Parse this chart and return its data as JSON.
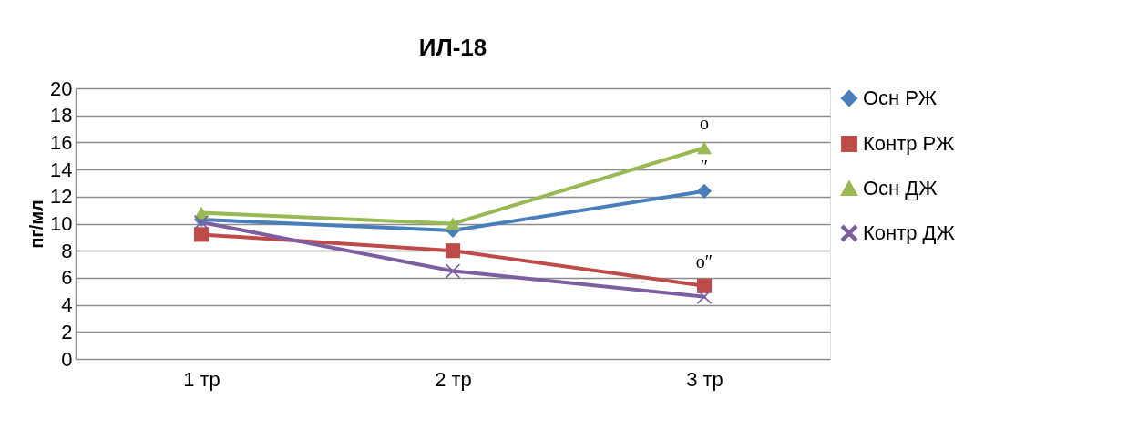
{
  "chart_data": {
    "type": "line",
    "title": "ИЛ-18",
    "ylabel": "пг/мл",
    "categories": [
      "1 тр",
      "2 тр",
      "3 тр"
    ],
    "series": [
      {
        "name": "Осн РЖ",
        "color": "#4a7ebb",
        "marker": "diamond",
        "values": [
          10.3,
          9.5,
          12.4
        ]
      },
      {
        "name": "Контр РЖ",
        "color": "#be4b48",
        "marker": "square",
        "values": [
          9.2,
          8.0,
          5.4
        ]
      },
      {
        "name": "Осн ДЖ",
        "color": "#98b954",
        "marker": "triangle",
        "values": [
          10.8,
          10.0,
          15.6
        ]
      },
      {
        "name": "Контр ДЖ",
        "color": "#7d5fa0",
        "marker": "cross",
        "values": [
          10.1,
          6.5,
          4.6
        ]
      }
    ],
    "ylim": [
      0,
      20
    ],
    "yticks": [
      0,
      2,
      4,
      6,
      8,
      10,
      12,
      14,
      16,
      18,
      20
    ],
    "grid": "y",
    "legend": "right",
    "line_style": "solid",
    "annotations": [
      {
        "text": "o",
        "x": "3 тр",
        "y": 15.6
      },
      {
        "text": "″",
        "x": "3 тр",
        "y": 12.4
      },
      {
        "text": "o″",
        "x": "3 тр",
        "y": 5.4
      }
    ]
  }
}
